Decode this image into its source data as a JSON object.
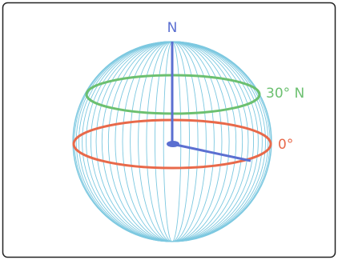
{
  "labels": {
    "north": "N",
    "latitude": "30° N",
    "equator": "0°"
  }
}
